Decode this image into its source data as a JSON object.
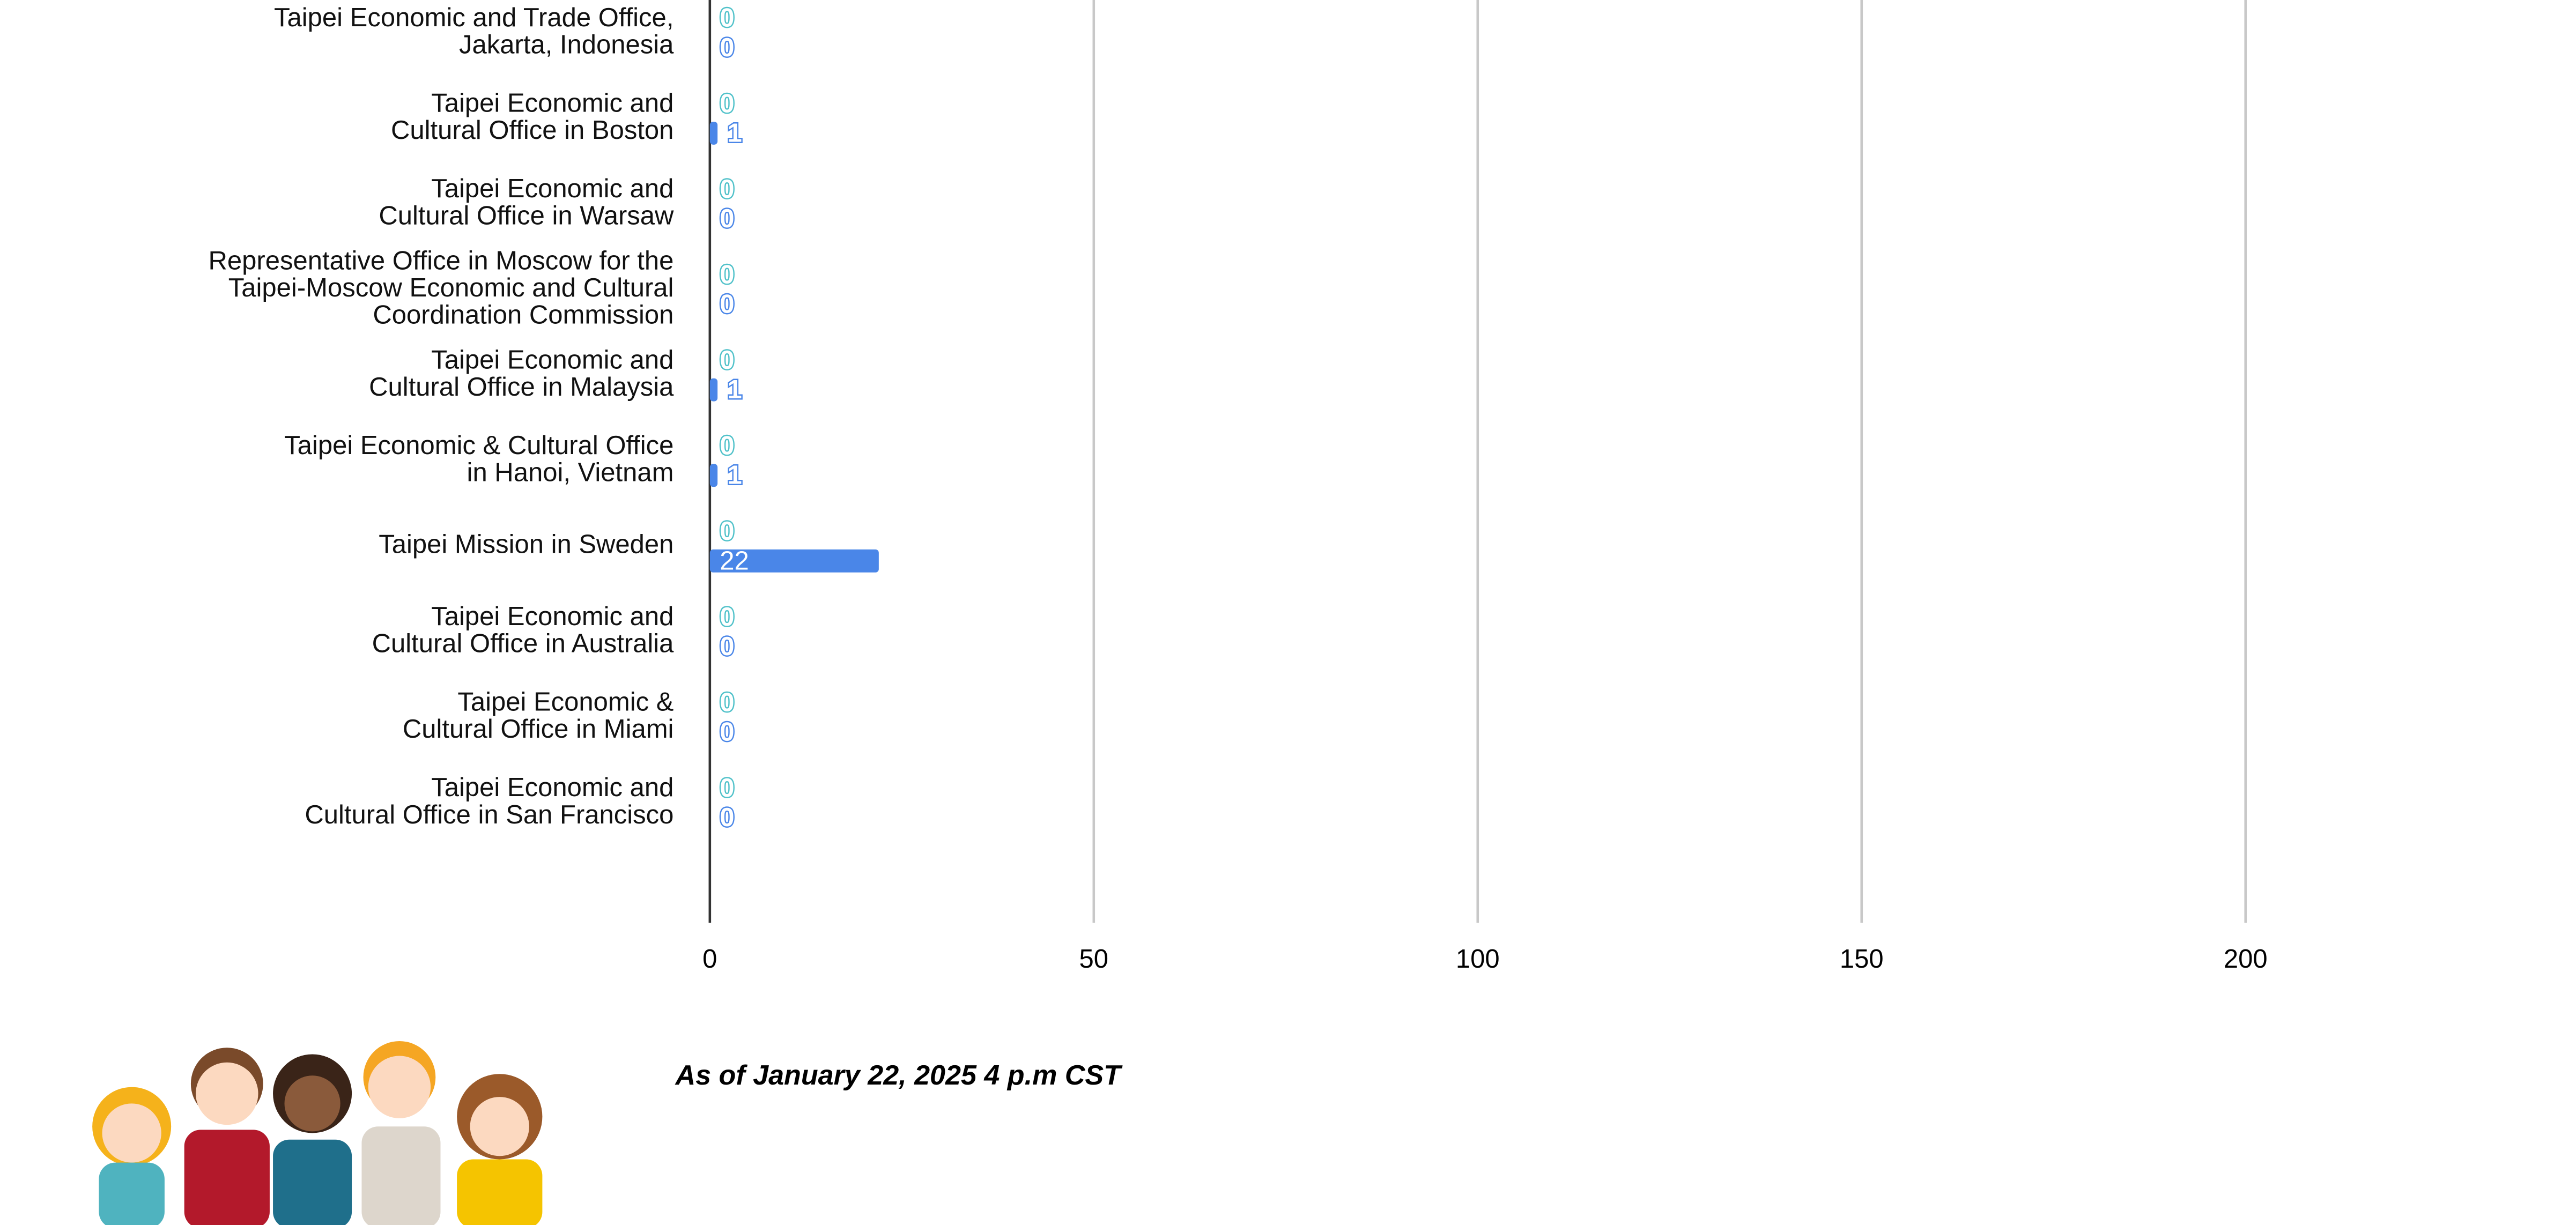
{
  "chart_data": {
    "type": "bar",
    "orientation": "horizontal",
    "categories": [
      "Taipei Economic and Trade Office,\nJakarta, Indonesia",
      "Taipei Economic and\nCultural Office in Boston",
      "Taipei Economic and\nCultural Office in Warsaw",
      "Representative Office in Moscow for the\nTaipei-Moscow Economic and Cultural\nCoordination Commission",
      "Taipei Economic and\nCultural Office in Malaysia",
      "Taipei Economic & Cultural Office\nin Hanoi, Vietnam",
      "Taipei Mission in Sweden",
      "Taipei Economic and\nCultural Office in Australia",
      "Taipei Economic &\nCultural Office in Miami",
      "Taipei Economic and\nCultural Office in San Francisco"
    ],
    "series": [
      {
        "color": "#4fc1c9",
        "values": [
          0,
          0,
          0,
          0,
          0,
          0,
          0,
          0,
          0,
          0
        ]
      },
      {
        "color": "#4a86e8",
        "values": [
          0,
          1,
          0,
          0,
          1,
          1,
          22,
          0,
          0,
          0
        ]
      }
    ],
    "xlim": [
      0,
      240
    ],
    "xticks": [
      0,
      50,
      100,
      150,
      200
    ],
    "grid": true,
    "footnote": "As of  January 22, 2025 4 p.m CST"
  }
}
